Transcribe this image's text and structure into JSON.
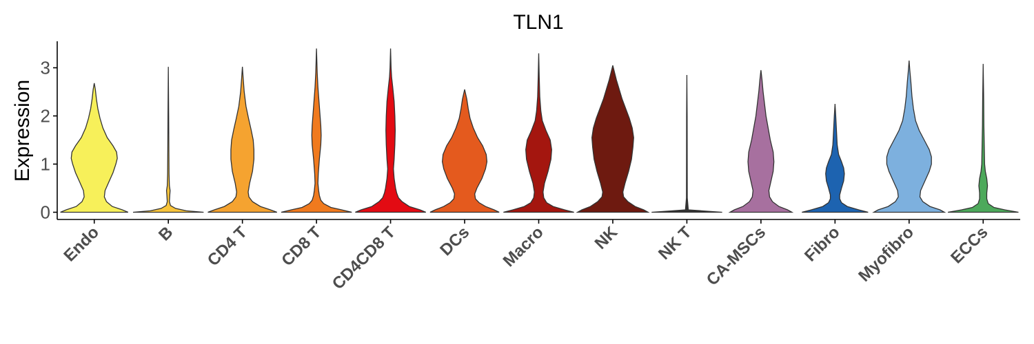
{
  "chart_data": {
    "type": "violin",
    "title": "TLN1",
    "ylabel": "Expression",
    "xlabel": "",
    "ylim": [
      -0.15,
      3.55
    ],
    "yticks": [
      "0",
      "1",
      "2",
      "3"
    ],
    "grid": false,
    "legend": "none",
    "categories": [
      "Endo",
      "B",
      "CD4 T",
      "CD8 T",
      "CD4CD8 T",
      "DCs",
      "Macro",
      "NK",
      "NK T",
      "CA-MSCs",
      "Fibro",
      "Myofibro",
      "ECCs"
    ],
    "colors": [
      "#F7F05A",
      "#F8C43C",
      "#F5A330",
      "#F07A1E",
      "#E30B13",
      "#E45A1E",
      "#A4160F",
      "#6E1A10",
      "#333333",
      "#A7709F",
      "#1D63B0",
      "#7DB0DE",
      "#4DA95B"
    ],
    "series": [
      {
        "category": "Endo",
        "max": 2.68,
        "density": [
          [
            0,
            0.94
          ],
          [
            0.05,
            0.78
          ],
          [
            0.12,
            0.5
          ],
          [
            0.22,
            0.34
          ],
          [
            0.32,
            0.28
          ],
          [
            0.45,
            0.3
          ],
          [
            0.62,
            0.4
          ],
          [
            0.82,
            0.52
          ],
          [
            1.0,
            0.6
          ],
          [
            1.12,
            0.64
          ],
          [
            1.25,
            0.62
          ],
          [
            1.38,
            0.52
          ],
          [
            1.55,
            0.36
          ],
          [
            1.75,
            0.24
          ],
          [
            1.95,
            0.16
          ],
          [
            2.15,
            0.1
          ],
          [
            2.35,
            0.06
          ],
          [
            2.55,
            0.03
          ],
          [
            2.68,
            0
          ]
        ]
      },
      {
        "category": "B",
        "max": 3.02,
        "density": [
          [
            0,
            0.98
          ],
          [
            0.03,
            0.5
          ],
          [
            0.08,
            0.2
          ],
          [
            0.14,
            0.06
          ],
          [
            0.22,
            0.03
          ],
          [
            0.35,
            0.04
          ],
          [
            0.45,
            0.05
          ],
          [
            0.55,
            0.03
          ],
          [
            0.8,
            0.02
          ],
          [
            1.3,
            0.015
          ],
          [
            2.0,
            0.01
          ],
          [
            3.02,
            0
          ]
        ]
      },
      {
        "category": "CD4 T",
        "max": 3.02,
        "density": [
          [
            0,
            0.96
          ],
          [
            0.05,
            0.78
          ],
          [
            0.12,
            0.5
          ],
          [
            0.22,
            0.28
          ],
          [
            0.32,
            0.18
          ],
          [
            0.42,
            0.16
          ],
          [
            0.6,
            0.2
          ],
          [
            0.85,
            0.28
          ],
          [
            1.1,
            0.32
          ],
          [
            1.3,
            0.32
          ],
          [
            1.5,
            0.3
          ],
          [
            1.72,
            0.24
          ],
          [
            1.95,
            0.17
          ],
          [
            2.2,
            0.1
          ],
          [
            2.5,
            0.05
          ],
          [
            2.8,
            0.02
          ],
          [
            3.02,
            0
          ]
        ]
      },
      {
        "category": "CD8 T",
        "max": 3.4,
        "density": [
          [
            0,
            0.98
          ],
          [
            0.05,
            0.7
          ],
          [
            0.1,
            0.4
          ],
          [
            0.18,
            0.2
          ],
          [
            0.25,
            0.12
          ],
          [
            0.35,
            0.08
          ],
          [
            0.45,
            0.06
          ],
          [
            0.6,
            0.04
          ],
          [
            0.8,
            0.05
          ],
          [
            1.1,
            0.08
          ],
          [
            1.4,
            0.12
          ],
          [
            1.6,
            0.13
          ],
          [
            1.8,
            0.12
          ],
          [
            2.0,
            0.1
          ],
          [
            2.3,
            0.07
          ],
          [
            2.6,
            0.04
          ],
          [
            2.9,
            0.02
          ],
          [
            3.4,
            0
          ]
        ]
      },
      {
        "category": "CD4CD8 T",
        "max": 3.4,
        "density": [
          [
            0,
            0.98
          ],
          [
            0.05,
            0.82
          ],
          [
            0.12,
            0.52
          ],
          [
            0.22,
            0.32
          ],
          [
            0.3,
            0.22
          ],
          [
            0.4,
            0.17
          ],
          [
            0.5,
            0.14
          ],
          [
            0.7,
            0.1
          ],
          [
            0.9,
            0.08
          ],
          [
            1.1,
            0.1
          ],
          [
            1.4,
            0.12
          ],
          [
            1.7,
            0.13
          ],
          [
            2.0,
            0.12
          ],
          [
            2.3,
            0.1
          ],
          [
            2.6,
            0.06
          ],
          [
            2.8,
            0.03
          ],
          [
            3.0,
            0.015
          ],
          [
            3.4,
            0
          ]
        ]
      },
      {
        "category": "DCs",
        "max": 2.55,
        "density": [
          [
            0,
            0.96
          ],
          [
            0.05,
            0.82
          ],
          [
            0.12,
            0.58
          ],
          [
            0.2,
            0.4
          ],
          [
            0.28,
            0.3
          ],
          [
            0.38,
            0.28
          ],
          [
            0.5,
            0.34
          ],
          [
            0.7,
            0.48
          ],
          [
            0.9,
            0.58
          ],
          [
            1.05,
            0.62
          ],
          [
            1.2,
            0.6
          ],
          [
            1.38,
            0.5
          ],
          [
            1.55,
            0.36
          ],
          [
            1.75,
            0.24
          ],
          [
            1.95,
            0.15
          ],
          [
            2.15,
            0.1
          ],
          [
            2.35,
            0.06
          ],
          [
            2.55,
            0
          ]
        ]
      },
      {
        "category": "Macro",
        "max": 3.3,
        "density": [
          [
            0,
            0.98
          ],
          [
            0.05,
            0.72
          ],
          [
            0.12,
            0.4
          ],
          [
            0.2,
            0.22
          ],
          [
            0.3,
            0.14
          ],
          [
            0.42,
            0.12
          ],
          [
            0.6,
            0.16
          ],
          [
            0.85,
            0.26
          ],
          [
            1.1,
            0.34
          ],
          [
            1.3,
            0.36
          ],
          [
            1.5,
            0.32
          ],
          [
            1.7,
            0.2
          ],
          [
            1.9,
            0.1
          ],
          [
            2.1,
            0.06
          ],
          [
            2.4,
            0.03
          ],
          [
            2.8,
            0.015
          ],
          [
            3.3,
            0
          ]
        ]
      },
      {
        "category": "NK",
        "max": 3.05,
        "density": [
          [
            0,
            0.98
          ],
          [
            0.05,
            0.86
          ],
          [
            0.12,
            0.62
          ],
          [
            0.22,
            0.42
          ],
          [
            0.32,
            0.3
          ],
          [
            0.42,
            0.28
          ],
          [
            0.6,
            0.34
          ],
          [
            0.85,
            0.44
          ],
          [
            1.1,
            0.52
          ],
          [
            1.35,
            0.56
          ],
          [
            1.55,
            0.58
          ],
          [
            1.75,
            0.54
          ],
          [
            1.95,
            0.46
          ],
          [
            2.15,
            0.36
          ],
          [
            2.35,
            0.26
          ],
          [
            2.55,
            0.18
          ],
          [
            2.75,
            0.1
          ],
          [
            2.9,
            0.05
          ],
          [
            3.05,
            0
          ]
        ]
      },
      {
        "category": "NK T",
        "max": 2.85,
        "density": [
          [
            0,
            0.98
          ],
          [
            0.02,
            0.6
          ],
          [
            0.05,
            0.04
          ],
          [
            0.3,
            0.012
          ],
          [
            1.0,
            0.01
          ],
          [
            2.0,
            0.008
          ],
          [
            2.85,
            0
          ]
        ]
      },
      {
        "category": "CA-MSCs",
        "max": 2.95,
        "density": [
          [
            0,
            0.86
          ],
          [
            0.05,
            0.74
          ],
          [
            0.12,
            0.5
          ],
          [
            0.22,
            0.32
          ],
          [
            0.32,
            0.24
          ],
          [
            0.45,
            0.22
          ],
          [
            0.65,
            0.28
          ],
          [
            0.85,
            0.34
          ],
          [
            1.05,
            0.36
          ],
          [
            1.25,
            0.34
          ],
          [
            1.5,
            0.26
          ],
          [
            1.75,
            0.2
          ],
          [
            2.0,
            0.14
          ],
          [
            2.25,
            0.1
          ],
          [
            2.5,
            0.06
          ],
          [
            2.75,
            0.03
          ],
          [
            2.95,
            0
          ]
        ]
      },
      {
        "category": "Fibro",
        "max": 2.25,
        "density": [
          [
            0,
            0.92
          ],
          [
            0.05,
            0.66
          ],
          [
            0.12,
            0.34
          ],
          [
            0.2,
            0.18
          ],
          [
            0.28,
            0.13
          ],
          [
            0.36,
            0.13
          ],
          [
            0.5,
            0.18
          ],
          [
            0.65,
            0.24
          ],
          [
            0.8,
            0.26
          ],
          [
            0.92,
            0.24
          ],
          [
            1.05,
            0.18
          ],
          [
            1.2,
            0.1
          ],
          [
            1.4,
            0.06
          ],
          [
            1.7,
            0.04
          ],
          [
            2.0,
            0.02
          ],
          [
            2.25,
            0
          ]
        ]
      },
      {
        "category": "Myofibro",
        "max": 3.15,
        "density": [
          [
            0,
            0.98
          ],
          [
            0.05,
            0.86
          ],
          [
            0.12,
            0.58
          ],
          [
            0.22,
            0.38
          ],
          [
            0.32,
            0.3
          ],
          [
            0.45,
            0.32
          ],
          [
            0.65,
            0.44
          ],
          [
            0.85,
            0.56
          ],
          [
            1.0,
            0.62
          ],
          [
            1.15,
            0.62
          ],
          [
            1.3,
            0.56
          ],
          [
            1.5,
            0.42
          ],
          [
            1.7,
            0.28
          ],
          [
            1.9,
            0.18
          ],
          [
            2.15,
            0.12
          ],
          [
            2.4,
            0.08
          ],
          [
            2.7,
            0.05
          ],
          [
            2.95,
            0.02
          ],
          [
            3.15,
            0
          ]
        ]
      },
      {
        "category": "ECCs",
        "max": 3.08,
        "density": [
          [
            0,
            0.98
          ],
          [
            0.05,
            0.6
          ],
          [
            0.1,
            0.3
          ],
          [
            0.18,
            0.14
          ],
          [
            0.28,
            0.1
          ],
          [
            0.4,
            0.1
          ],
          [
            0.55,
            0.12
          ],
          [
            0.7,
            0.1
          ],
          [
            0.85,
            0.06
          ],
          [
            1.0,
            0.04
          ],
          [
            1.4,
            0.03
          ],
          [
            1.8,
            0.02
          ],
          [
            2.3,
            0.015
          ],
          [
            3.08,
            0
          ]
        ]
      }
    ]
  }
}
